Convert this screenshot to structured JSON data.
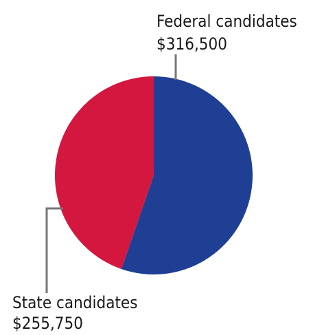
{
  "chart_data": {
    "type": "pie",
    "slices": [
      {
        "label": "Federal candidates",
        "value_text": "$316,500",
        "value": 316500,
        "color": "#1f3f95"
      },
      {
        "label": "State candidates",
        "value_text": "$255,750",
        "value": 255750,
        "color": "#d3173f"
      }
    ],
    "start_angle_deg": 0,
    "direction": "clockwise"
  }
}
